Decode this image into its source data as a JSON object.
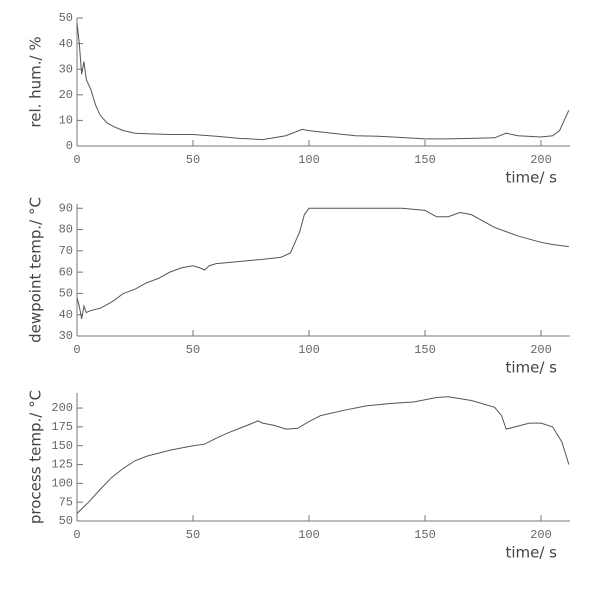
{
  "chart_data": [
    {
      "type": "line",
      "ylabel": "rel. hum./ %",
      "xlabel": "time/ s",
      "color": "#555555",
      "xlim": [
        0,
        212.5
      ],
      "ylim": [
        0,
        50
      ],
      "xticks": [
        0,
        50,
        100,
        150,
        200
      ],
      "yticks": [
        0,
        10,
        20,
        30,
        40,
        50
      ],
      "x": [
        0,
        1,
        2,
        3,
        4,
        6,
        8,
        10,
        13,
        16,
        20,
        25,
        30,
        40,
        50,
        60,
        70,
        80,
        90,
        97,
        100,
        110,
        120,
        130,
        140,
        150,
        160,
        170,
        180,
        185,
        190,
        200,
        205,
        208,
        210,
        212
      ],
      "values": [
        48,
        40,
        28,
        33,
        26,
        22,
        16,
        12,
        9,
        7.5,
        6,
        5,
        4.8,
        4.5,
        4.5,
        3.8,
        3,
        2.5,
        4,
        6.5,
        6,
        5,
        4,
        3.8,
        3.3,
        2.8,
        2.8,
        3,
        3.2,
        5,
        4,
        3.5,
        4,
        6,
        10,
        14
      ]
    },
    {
      "type": "line",
      "ylabel": "dewpoint temp./ °C",
      "xlabel": "time/ s",
      "color": "#555555",
      "xlim": [
        0,
        212.5
      ],
      "ylim": [
        30,
        92
      ],
      "xticks": [
        0,
        50,
        100,
        150,
        200
      ],
      "yticks": [
        30,
        40,
        50,
        60,
        70,
        80,
        90
      ],
      "x": [
        0,
        1,
        2,
        3,
        4,
        6,
        10,
        15,
        20,
        25,
        30,
        35,
        40,
        45,
        50,
        53,
        55,
        57,
        60,
        70,
        80,
        88,
        92,
        94,
        96,
        98,
        100,
        105,
        120,
        140,
        150,
        155,
        160,
        165,
        170,
        175,
        180,
        190,
        200,
        205,
        212
      ],
      "values": [
        48,
        44,
        38,
        44,
        41,
        42,
        43,
        46,
        50,
        52,
        55,
        57,
        60,
        62,
        63,
        62,
        61,
        63,
        64,
        65,
        66,
        67,
        69,
        74,
        79,
        87,
        90,
        90,
        90,
        90,
        89,
        86,
        86,
        88,
        87,
        84,
        81,
        77,
        74,
        73,
        72
      ]
    },
    {
      "type": "line",
      "ylabel": "process temp./ °C",
      "xlabel": "time/ s",
      "color": "#555555",
      "xlim": [
        0,
        212.5
      ],
      "ylim": [
        50,
        220
      ],
      "xticks": [
        0,
        50,
        100,
        150,
        200
      ],
      "yticks": [
        50,
        75,
        100,
        125,
        150,
        175,
        200
      ],
      "x": [
        0,
        5,
        10,
        15,
        20,
        25,
        30,
        35,
        40,
        45,
        50,
        55,
        60,
        65,
        70,
        75,
        78,
        80,
        85,
        90,
        95,
        100,
        105,
        115,
        125,
        135,
        145,
        155,
        160,
        170,
        180,
        183,
        185,
        190,
        195,
        200,
        205,
        209,
        212
      ],
      "values": [
        60,
        75,
        92,
        108,
        120,
        130,
        136,
        140,
        144,
        147,
        150,
        152,
        160,
        167,
        173,
        179,
        183,
        180,
        177,
        172,
        173,
        182,
        190,
        197,
        203,
        206,
        208,
        214,
        215,
        210,
        201,
        190,
        172,
        176,
        180,
        180,
        175,
        155,
        125
      ]
    }
  ]
}
